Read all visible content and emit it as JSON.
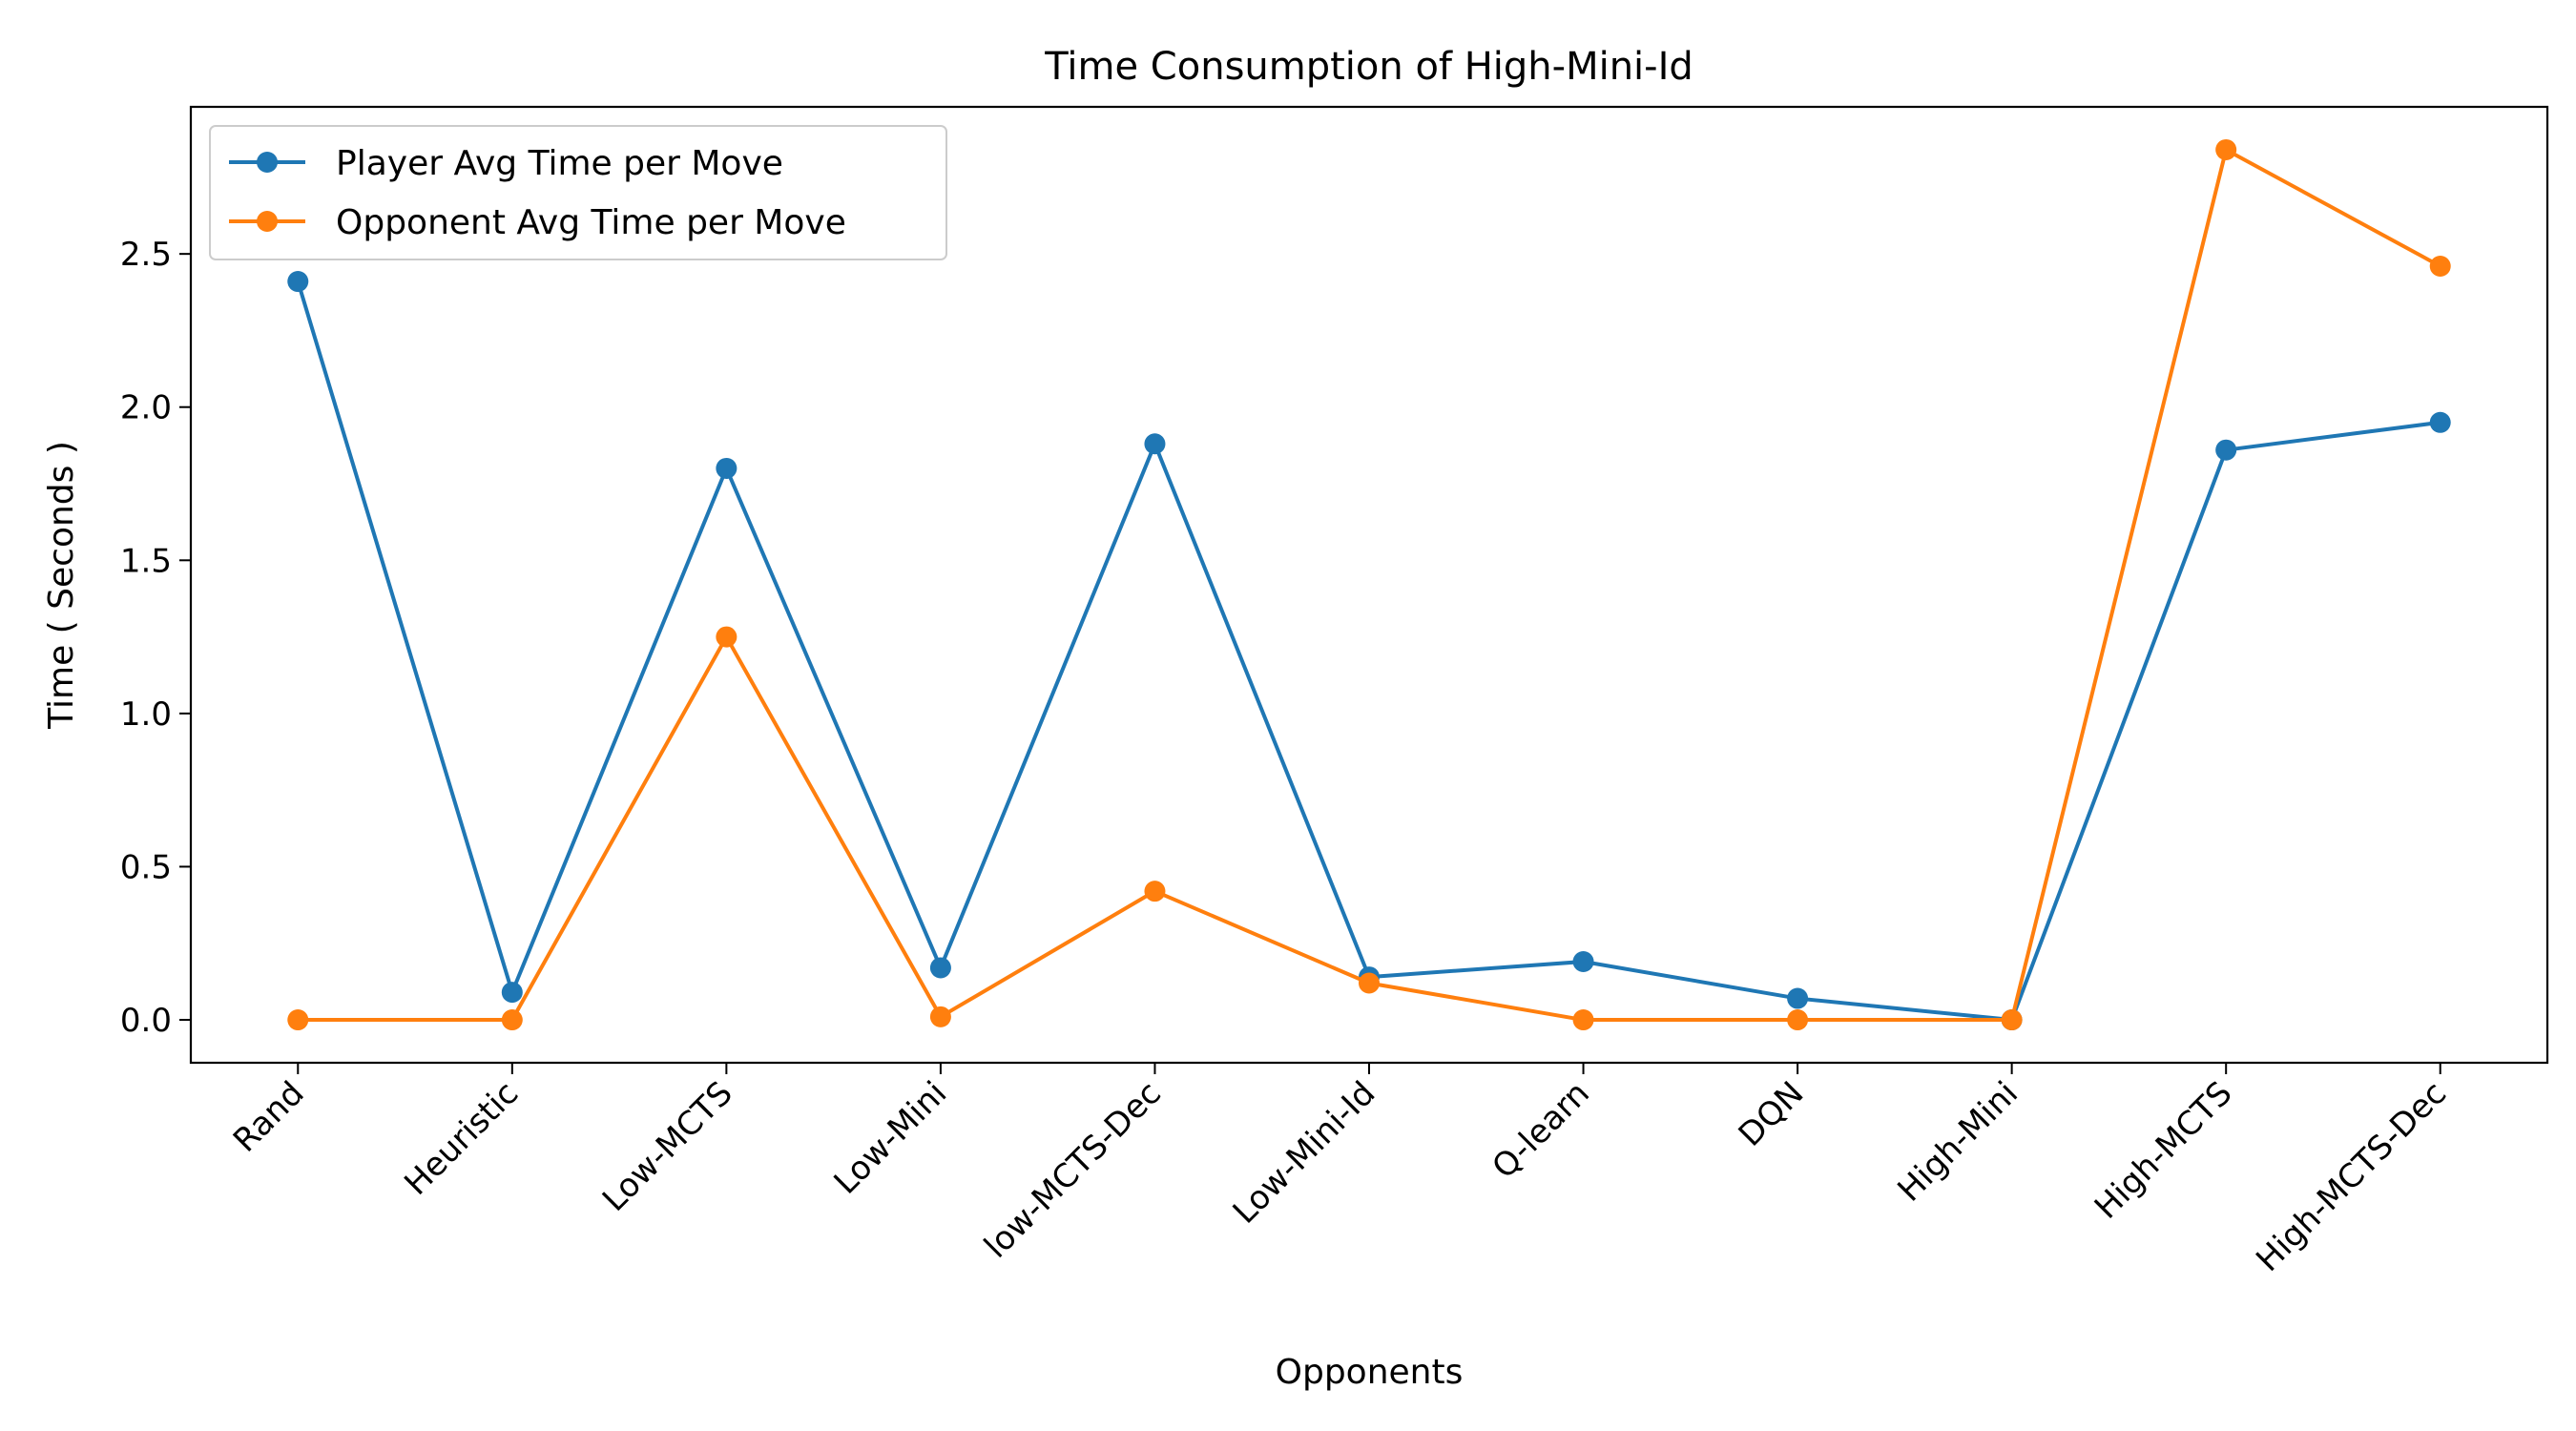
{
  "chart_data": {
    "type": "line",
    "title": "Time Consumption of High-Mini-Id",
    "xlabel": "Opponents",
    "ylabel": "Time ( Seconds )",
    "categories": [
      "Rand",
      "Heuristic",
      "Low-MCTS",
      "Low-Mini",
      "low-MCTS-Dec",
      "Low-Mini-Id",
      "Q-learn",
      "DQN",
      "High-Mini",
      "High-MCTS",
      "High-MCTS-Dec"
    ],
    "ylim": [
      -0.14,
      2.98
    ],
    "yticks": [
      0.0,
      0.5,
      1.0,
      1.5,
      2.0,
      2.5
    ],
    "ytick_labels": [
      "0.0",
      "0.5",
      "1.0",
      "1.5",
      "2.0",
      "2.5"
    ],
    "grid": false,
    "legend": "top-left",
    "series": [
      {
        "name": "Player Avg Time per Move",
        "color": "#1f77b4",
        "marker": "circle",
        "values": [
          2.41,
          0.09,
          1.8,
          0.17,
          1.88,
          0.14,
          0.19,
          0.07,
          0.0,
          1.86,
          1.95
        ]
      },
      {
        "name": "Opponent Avg Time per Move",
        "color": "#ff7f0e",
        "marker": "circle",
        "values": [
          0.0,
          0.0,
          1.25,
          0.01,
          0.42,
          0.12,
          0.0,
          0.0,
          0.0,
          2.84,
          2.46
        ]
      }
    ]
  }
}
